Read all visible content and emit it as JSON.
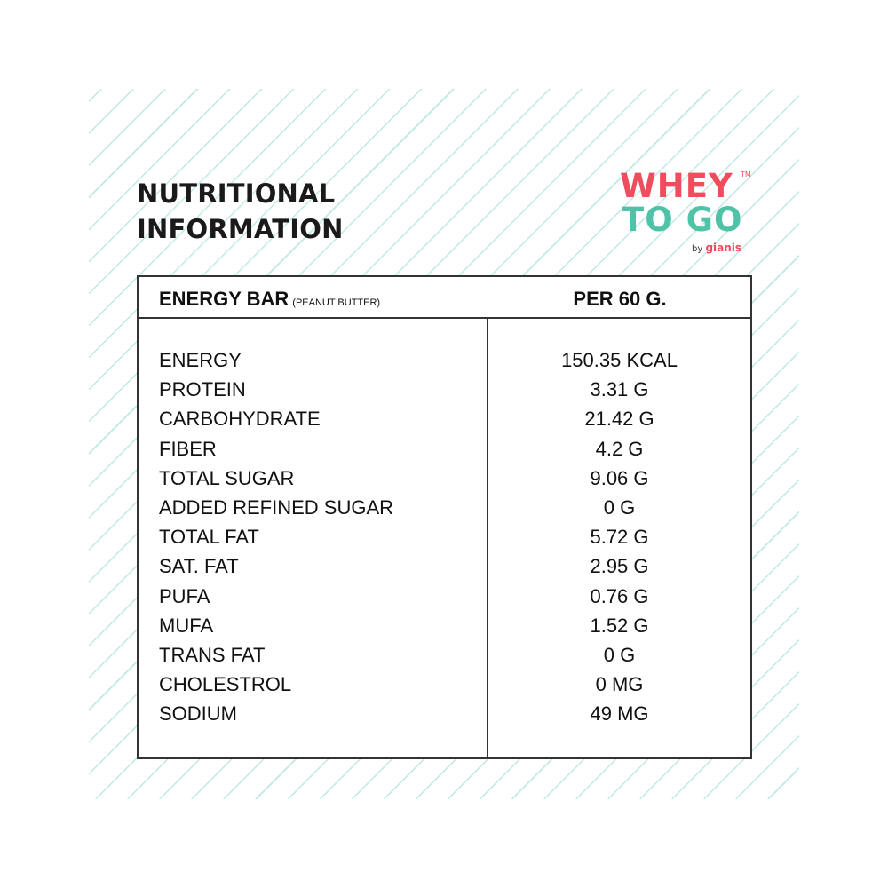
{
  "header": {
    "title_line1": "NUTRITIONAL",
    "title_line2": "INFORMATION"
  },
  "logo": {
    "line1": "WHEY",
    "line2": "TO GO",
    "trademark": "TM",
    "by": "by",
    "brand": "gianis",
    "colors": {
      "primary": "#ef4d5e",
      "secondary": "#4fc2a8"
    }
  },
  "table": {
    "product_name": "ENERGY BAR",
    "product_variant": "(PEANUT BUTTER)",
    "serving": "PER 60 G.",
    "rows": [
      {
        "label": "ENERGY",
        "value": "150.35 KCAL"
      },
      {
        "label": "PROTEIN",
        "value": "3.31 G"
      },
      {
        "label": "CARBOHYDRATE",
        "value": "21.42 G"
      },
      {
        "label": "FIBER",
        "value": "4.2 G"
      },
      {
        "label": "TOTAL SUGAR",
        "value": "9.06 G"
      },
      {
        "label": "ADDED REFINED SUGAR",
        "value": "0 G"
      },
      {
        "label": "TOTAL FAT",
        "value": "5.72 G"
      },
      {
        "label": "SAT. FAT",
        "value": "2.95 G"
      },
      {
        "label": "PUFA",
        "value": "0.76 G"
      },
      {
        "label": "MUFA",
        "value": "1.52 G"
      },
      {
        "label": "TRANS FAT",
        "value": "0 G"
      },
      {
        "label": "CHOLESTROL",
        "value": "0 MG"
      },
      {
        "label": "SODIUM",
        "value": "49 MG"
      }
    ]
  },
  "theme": {
    "stripe_color": "#bfe9e2",
    "border_color": "#333333",
    "text_color": "#111111"
  }
}
